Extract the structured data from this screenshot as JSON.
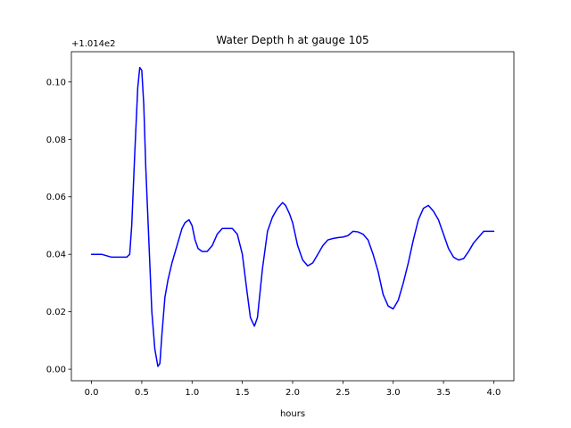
{
  "chart_data": {
    "type": "line",
    "title": "Water Depth h at gauge 105",
    "xlabel": "hours",
    "ylabel": "",
    "offset_label": "+1.014e2",
    "xlim": [
      -0.2,
      4.2
    ],
    "ylim": [
      -0.004,
      0.1105
    ],
    "xticks": [
      0.0,
      0.5,
      1.0,
      1.5,
      2.0,
      2.5,
      3.0,
      3.5,
      4.0
    ],
    "xtick_labels": [
      "0.0",
      "0.5",
      "1.0",
      "1.5",
      "2.0",
      "2.5",
      "3.0",
      "3.5",
      "4.0"
    ],
    "yticks": [
      0.0,
      0.02,
      0.04,
      0.06,
      0.08,
      0.1
    ],
    "ytick_labels": [
      "0.00",
      "0.02",
      "0.04",
      "0.06",
      "0.08",
      "0.10"
    ],
    "grid": false,
    "series": [
      {
        "name": "",
        "color": "#0000ff",
        "x": [
          0.0,
          0.1,
          0.2,
          0.3,
          0.35,
          0.38,
          0.4,
          0.43,
          0.46,
          0.48,
          0.5,
          0.52,
          0.54,
          0.57,
          0.6,
          0.63,
          0.66,
          0.68,
          0.7,
          0.73,
          0.76,
          0.8,
          0.85,
          0.9,
          0.93,
          0.97,
          1.0,
          1.03,
          1.06,
          1.1,
          1.15,
          1.2,
          1.25,
          1.3,
          1.35,
          1.4,
          1.45,
          1.5,
          1.55,
          1.58,
          1.62,
          1.65,
          1.7,
          1.75,
          1.8,
          1.85,
          1.9,
          1.93,
          1.97,
          2.0,
          2.05,
          2.1,
          2.15,
          2.2,
          2.25,
          2.3,
          2.35,
          2.4,
          2.45,
          2.5,
          2.55,
          2.6,
          2.65,
          2.7,
          2.75,
          2.8,
          2.85,
          2.9,
          2.95,
          3.0,
          3.05,
          3.1,
          3.15,
          3.2,
          3.25,
          3.3,
          3.35,
          3.4,
          3.45,
          3.5,
          3.55,
          3.6,
          3.65,
          3.7,
          3.75,
          3.8,
          3.85,
          3.9,
          3.95,
          4.0
        ],
        "y": [
          0.04,
          0.04,
          0.039,
          0.039,
          0.039,
          0.04,
          0.05,
          0.075,
          0.098,
          0.105,
          0.104,
          0.092,
          0.07,
          0.045,
          0.02,
          0.007,
          0.001,
          0.002,
          0.012,
          0.025,
          0.031,
          0.037,
          0.043,
          0.049,
          0.051,
          0.052,
          0.05,
          0.045,
          0.042,
          0.041,
          0.041,
          0.043,
          0.047,
          0.049,
          0.049,
          0.049,
          0.047,
          0.04,
          0.026,
          0.018,
          0.015,
          0.018,
          0.035,
          0.048,
          0.053,
          0.056,
          0.058,
          0.057,
          0.054,
          0.051,
          0.043,
          0.038,
          0.036,
          0.037,
          0.04,
          0.043,
          0.045,
          0.0455,
          0.0458,
          0.046,
          0.0465,
          0.048,
          0.0478,
          0.047,
          0.045,
          0.04,
          0.034,
          0.026,
          0.022,
          0.021,
          0.024,
          0.03,
          0.037,
          0.045,
          0.052,
          0.056,
          0.057,
          0.055,
          0.052,
          0.047,
          0.042,
          0.039,
          0.038,
          0.0385,
          0.041,
          0.044,
          0.046,
          0.048,
          0.048,
          0.048
        ]
      }
    ]
  }
}
